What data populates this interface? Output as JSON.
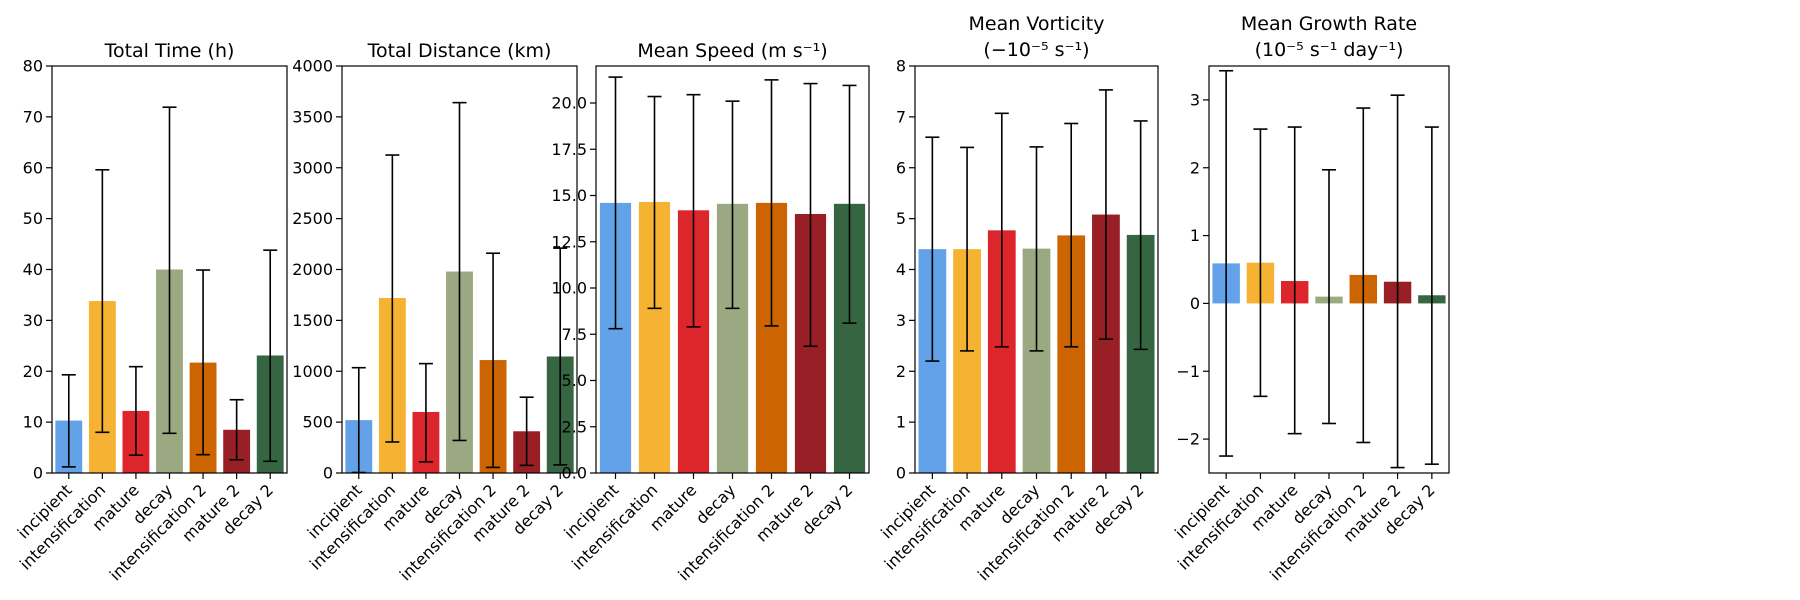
{
  "chart_data": [
    {
      "type": "bar",
      "title": "Total Time (h)",
      "title2": "",
      "categories": [
        "incipient",
        "intensification",
        "mature",
        "decay",
        "intensification 2",
        "mature 2",
        "decay 2"
      ],
      "values": [
        10.3,
        33.8,
        12.2,
        40.0,
        21.7,
        8.5,
        23.1
      ],
      "error_low": [
        1.2,
        8.0,
        3.5,
        7.8,
        3.6,
        2.6,
        2.3
      ],
      "error_high": [
        19.3,
        59.6,
        20.9,
        71.9,
        39.9,
        14.4,
        43.8
      ],
      "ylim": [
        0,
        80
      ],
      "yticks": [
        "0",
        "10",
        "20",
        "30",
        "40",
        "50",
        "60",
        "70",
        "80"
      ],
      "colors": [
        "#63a2e8",
        "#f6b233",
        "#dc262c",
        "#9aa981",
        "#cc6501",
        "#991f26",
        "#366641"
      ]
    },
    {
      "type": "bar",
      "title": "Total Distance (km)",
      "title2": "",
      "categories": [
        "incipient",
        "intensification",
        "mature",
        "decay",
        "intensification 2",
        "mature 2",
        "decay 2"
      ],
      "values": [
        520,
        1720,
        600,
        1980,
        1110,
        410,
        1145
      ],
      "error_low": [
        5,
        305,
        110,
        320,
        55,
        75,
        80
      ],
      "error_high": [
        1035,
        3125,
        1075,
        3640,
        2160,
        745,
        2210
      ],
      "ylim": [
        0,
        4000
      ],
      "yticks": [
        "0",
        "500",
        "1000",
        "1500",
        "2000",
        "2500",
        "3000",
        "3500",
        "4000"
      ],
      "colors": [
        "#63a2e8",
        "#f6b233",
        "#dc262c",
        "#9aa981",
        "#cc6501",
        "#991f26",
        "#366641"
      ]
    },
    {
      "type": "bar",
      "title": "Mean Speed (m s⁻¹)",
      "title2": "",
      "categories": [
        "incipient",
        "intensification",
        "mature",
        "decay",
        "intensification 2",
        "mature 2",
        "decay 2"
      ],
      "values": [
        14.6,
        14.65,
        14.2,
        14.55,
        14.6,
        14.0,
        14.55
      ],
      "error_low": [
        7.8,
        8.9,
        7.9,
        8.9,
        7.95,
        6.85,
        8.1
      ],
      "error_high": [
        21.4,
        20.35,
        20.45,
        20.1,
        21.25,
        21.05,
        20.95
      ],
      "ylim": [
        0,
        22
      ],
      "yticks": [
        "0.0",
        "2.5",
        "5.0",
        "7.5",
        "10.0",
        "12.5",
        "15.0",
        "17.5",
        "20.0"
      ],
      "ytick_values": [
        0,
        2.5,
        5,
        7.5,
        10,
        12.5,
        15,
        17.5,
        20
      ],
      "colors": [
        "#63a2e8",
        "#f6b233",
        "#dc262c",
        "#9aa981",
        "#cc6501",
        "#991f26",
        "#366641"
      ]
    },
    {
      "type": "bar",
      "title": "Mean Vorticity",
      "title2": "(−10⁻⁵ s⁻¹)",
      "categories": [
        "incipient",
        "intensification",
        "mature",
        "decay",
        "intensification 2",
        "mature 2",
        "decay 2"
      ],
      "values": [
        4.4,
        4.4,
        4.77,
        4.41,
        4.67,
        5.08,
        4.68
      ],
      "error_low": [
        2.2,
        2.4,
        2.48,
        2.4,
        2.48,
        2.63,
        2.43
      ],
      "error_high": [
        6.6,
        6.4,
        7.07,
        6.41,
        6.87,
        7.53,
        6.92
      ],
      "ylim": [
        0,
        8
      ],
      "yticks": [
        "0",
        "1",
        "2",
        "3",
        "4",
        "5",
        "6",
        "7",
        "8"
      ],
      "colors": [
        "#63a2e8",
        "#f6b233",
        "#dc262c",
        "#9aa981",
        "#cc6501",
        "#991f26",
        "#366641"
      ]
    },
    {
      "type": "bar",
      "title": "Mean Growth Rate",
      "title2": "(10⁻⁵ s⁻¹ day⁻¹)",
      "categories": [
        "incipient",
        "intensification",
        "mature",
        "decay",
        "intensification 2",
        "mature 2",
        "decay 2"
      ],
      "values": [
        0.59,
        0.6,
        0.33,
        0.1,
        0.42,
        0.32,
        0.12
      ],
      "error_low": [
        -2.25,
        -1.37,
        -1.92,
        -1.77,
        -2.05,
        -2.42,
        -2.37
      ],
      "error_high": [
        3.43,
        2.57,
        2.6,
        1.97,
        2.88,
        3.07,
        2.6
      ],
      "ylim": [
        -2.5,
        3.5
      ],
      "yticks": [
        "−2",
        "−1",
        "0",
        "1",
        "2",
        "3"
      ],
      "ytick_values": [
        -2,
        -1,
        0,
        1,
        2,
        3
      ],
      "colors": [
        "#63a2e8",
        "#f6b233",
        "#dc262c",
        "#9aa981",
        "#cc6501",
        "#991f26",
        "#366641"
      ]
    }
  ]
}
